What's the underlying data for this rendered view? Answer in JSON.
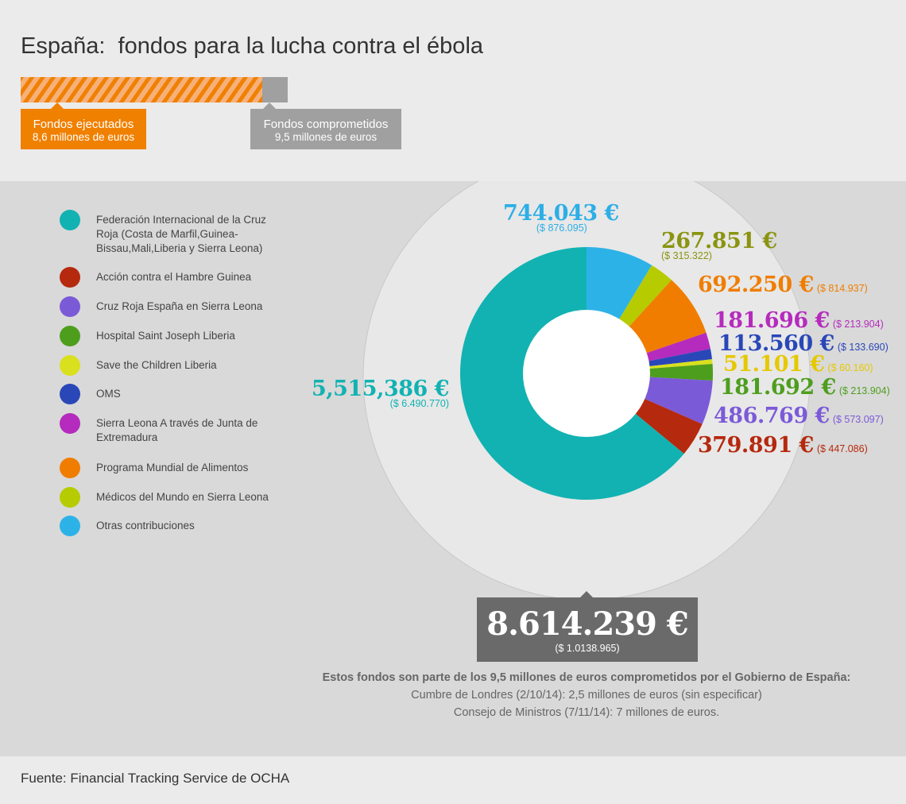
{
  "title": "España:  fondos para la lucha contra el ébola",
  "progress": {
    "executed_millions": 8.6,
    "committed_millions": 9.5,
    "executed_label": "Fondos ejecutados",
    "executed_value": "8,6 millones de euros",
    "committed_label": "Fondos comprometidos",
    "committed_value": "9,5 millones de euros"
  },
  "chart_data": {
    "type": "pie",
    "donut": true,
    "unit": "€",
    "slices": [
      {
        "name": "Otras contribuciones",
        "value": 744043,
        "eur": "744.043 €",
        "usd": "($ 876.095)",
        "color": "#2db2e8",
        "label_color": "#2daee6"
      },
      {
        "name": "Médicos del Mundo en Sierra Leona",
        "value": 267851,
        "eur": "267.851 €",
        "usd": "($ 315.322)",
        "color": "#b6cc00",
        "label_color": "#8a9410"
      },
      {
        "name": "Programa Mundial de Alimentos",
        "value": 692250,
        "eur": "692.250 €",
        "usd": "($ 814.937)",
        "color": "#f07d00",
        "label_color": "#f07d00"
      },
      {
        "name": "Sierra Leona A través de Junta de Extremadura",
        "value": 181696,
        "eur": "181.696 €",
        "usd": "($ 213.904)",
        "color": "#b52bbd",
        "label_color": "#b52bbd"
      },
      {
        "name": "OMS",
        "value": 113560,
        "eur": "113.560 €",
        "usd": "($ 133.690)",
        "color": "#2a47b8",
        "label_color": "#2a47b8"
      },
      {
        "name": "Save the Children Liberia",
        "value": 51101,
        "eur": "51.101 €",
        "usd": "($ 60.160)",
        "color": "#d9e01e",
        "label_color": "#e6c800"
      },
      {
        "name": "Hospital Saint Joseph Liberia",
        "value": 181692,
        "eur": "181.692 €",
        "usd": "($ 213.904)",
        "color": "#4e9e1e",
        "label_color": "#4e9e1e"
      },
      {
        "name": "Cruz Roja España en Sierra Leona",
        "value": 486769,
        "eur": "486.769 €",
        "usd": "($ 573.097)",
        "color": "#7b5ad8",
        "label_color": "#7b5ad8"
      },
      {
        "name": "Acción contra el Hambre Guinea",
        "value": 379891,
        "eur": "379.891 €",
        "usd": "($ 447.086)",
        "color": "#b5290e",
        "label_color": "#b5290e"
      },
      {
        "name": "Federación Internacional de la Cruz Roja (Costa de Marfil,Guinea-Bissau,Mali,Liberia y Sierra Leona)",
        "value": 5515386,
        "eur": "5,515,386 €",
        "usd": "($ 6.490.770)",
        "color": "#12b2b2",
        "label_color": "#12b2b2"
      }
    ],
    "total": {
      "eur": "8.614.239 €",
      "usd": "($ 1.0138.965)"
    }
  },
  "legend": [
    {
      "label": "Federación Internacional de la Cruz Roja (Costa de Marfil,Guinea-Bissau,Mali,Liberia y Sierra Leona)",
      "color": "#12b2b2"
    },
    {
      "label": "Acción contra el Hambre Guinea",
      "color": "#b5290e"
    },
    {
      "label": "Cruz Roja España en Sierra Leona",
      "color": "#7b5ad8"
    },
    {
      "label": "Hospital Saint Joseph Liberia",
      "color": "#4e9e1e"
    },
    {
      "label": "Save the Children Liberia",
      "color": "#d9e01e"
    },
    {
      "label": "OMS",
      "color": "#2a47b8"
    },
    {
      "label": "Sierra Leona A través de Junta de Extremadura",
      "color": "#b52bbd"
    },
    {
      "label": "Programa Mundial de Alimentos",
      "color": "#f07d00"
    },
    {
      "label": "Médicos del Mundo en Sierra Leona",
      "color": "#b6cc00"
    },
    {
      "label": "Otras contribuciones",
      "color": "#2db2e8"
    }
  ],
  "notes": {
    "heading": "Estos fondos son parte de los 9,5 millones de euros comprometidos por el Gobierno de España:",
    "line1": "Cumbre de Londres (2/10/14): 2,5 millones de euros (sin especificar)",
    "line2": "Consejo de Ministros (7/11/14): 7 millones de euros."
  },
  "footer": "Fuente: Financial Tracking Service de OCHA"
}
